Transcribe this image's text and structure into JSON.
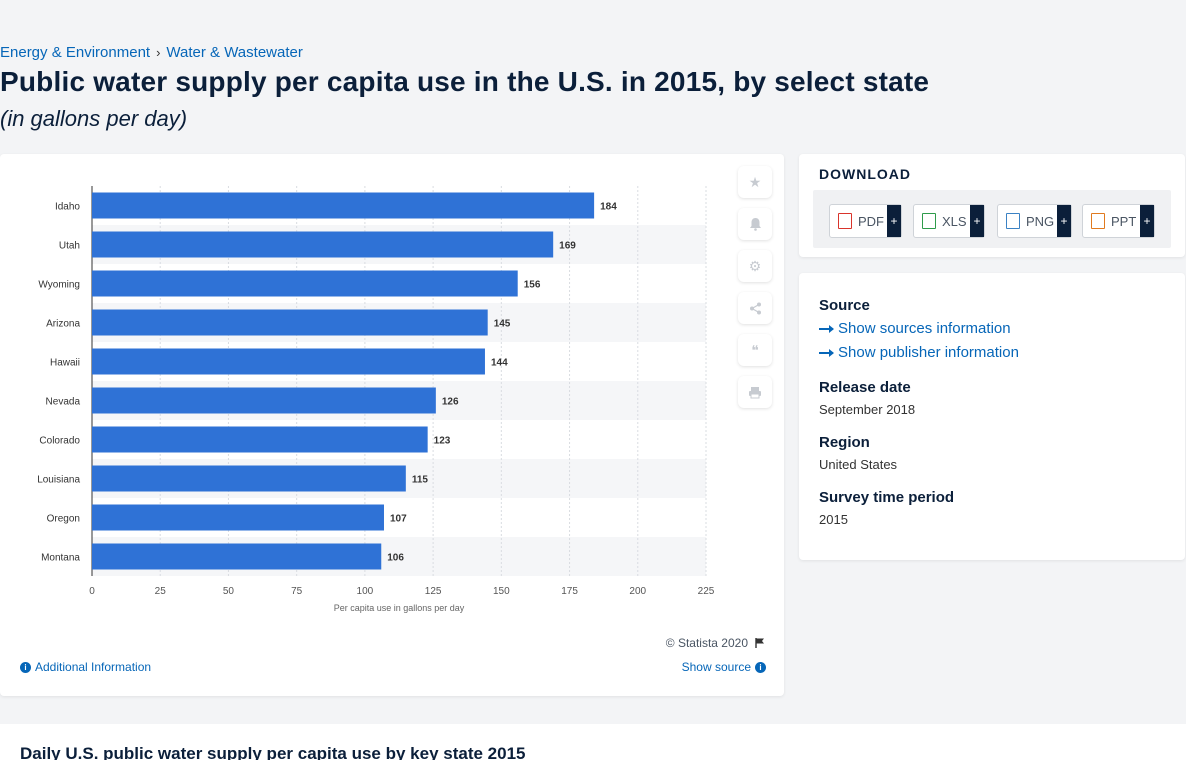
{
  "breadcrumb": {
    "item1": "Energy & Environment",
    "item2": "Water & Wastewater",
    "sep": "›"
  },
  "header": {
    "title": "Public water supply per capita use in the U.S. in 2015, by select state",
    "subtitle": "(in gallons per day)"
  },
  "chart_tools": {
    "icons": [
      "star-icon",
      "bell-icon",
      "gear-icon",
      "share-icon",
      "quote-icon",
      "print-icon"
    ]
  },
  "chart_footer": {
    "copyright": "© Statista 2020",
    "additional_info": "Additional Information",
    "show_source": "Show source"
  },
  "download": {
    "title": "DOWNLOAD",
    "buttons": [
      {
        "label": "PDF",
        "color": "#d9342b"
      },
      {
        "label": "XLS",
        "color": "#2e9b4a"
      },
      {
        "label": "PNG",
        "color": "#3b82c4"
      },
      {
        "label": "PPT",
        "color": "#e07a1f"
      }
    ],
    "plus": "+"
  },
  "meta": {
    "source_label": "Source",
    "show_sources": "Show sources information",
    "show_publisher": "Show publisher information",
    "release_label": "Release date",
    "release_value": "September 2018",
    "region_label": "Region",
    "region_value": "United States",
    "period_label": "Survey time period",
    "period_value": "2015"
  },
  "bottom": {
    "title": "Daily U.S. public water supply per capita use by key state 2015"
  },
  "colors": {
    "bar": "#2f72d6",
    "accent": "#0666b8",
    "title": "#0b1f3a"
  },
  "chart_data": {
    "type": "bar",
    "orientation": "horizontal",
    "categories": [
      "Idaho",
      "Utah",
      "Wyoming",
      "Arizona",
      "Hawaii",
      "Nevada",
      "Colorado",
      "Louisiana",
      "Oregon",
      "Montana"
    ],
    "values": [
      184,
      169,
      156,
      145,
      144,
      126,
      123,
      115,
      107,
      106
    ],
    "xlabel": "Per capita use in gallons per day",
    "xlim": [
      0,
      225
    ],
    "xticks": [
      0,
      25,
      50,
      75,
      100,
      125,
      150,
      175,
      200,
      225
    ],
    "grid": true
  }
}
